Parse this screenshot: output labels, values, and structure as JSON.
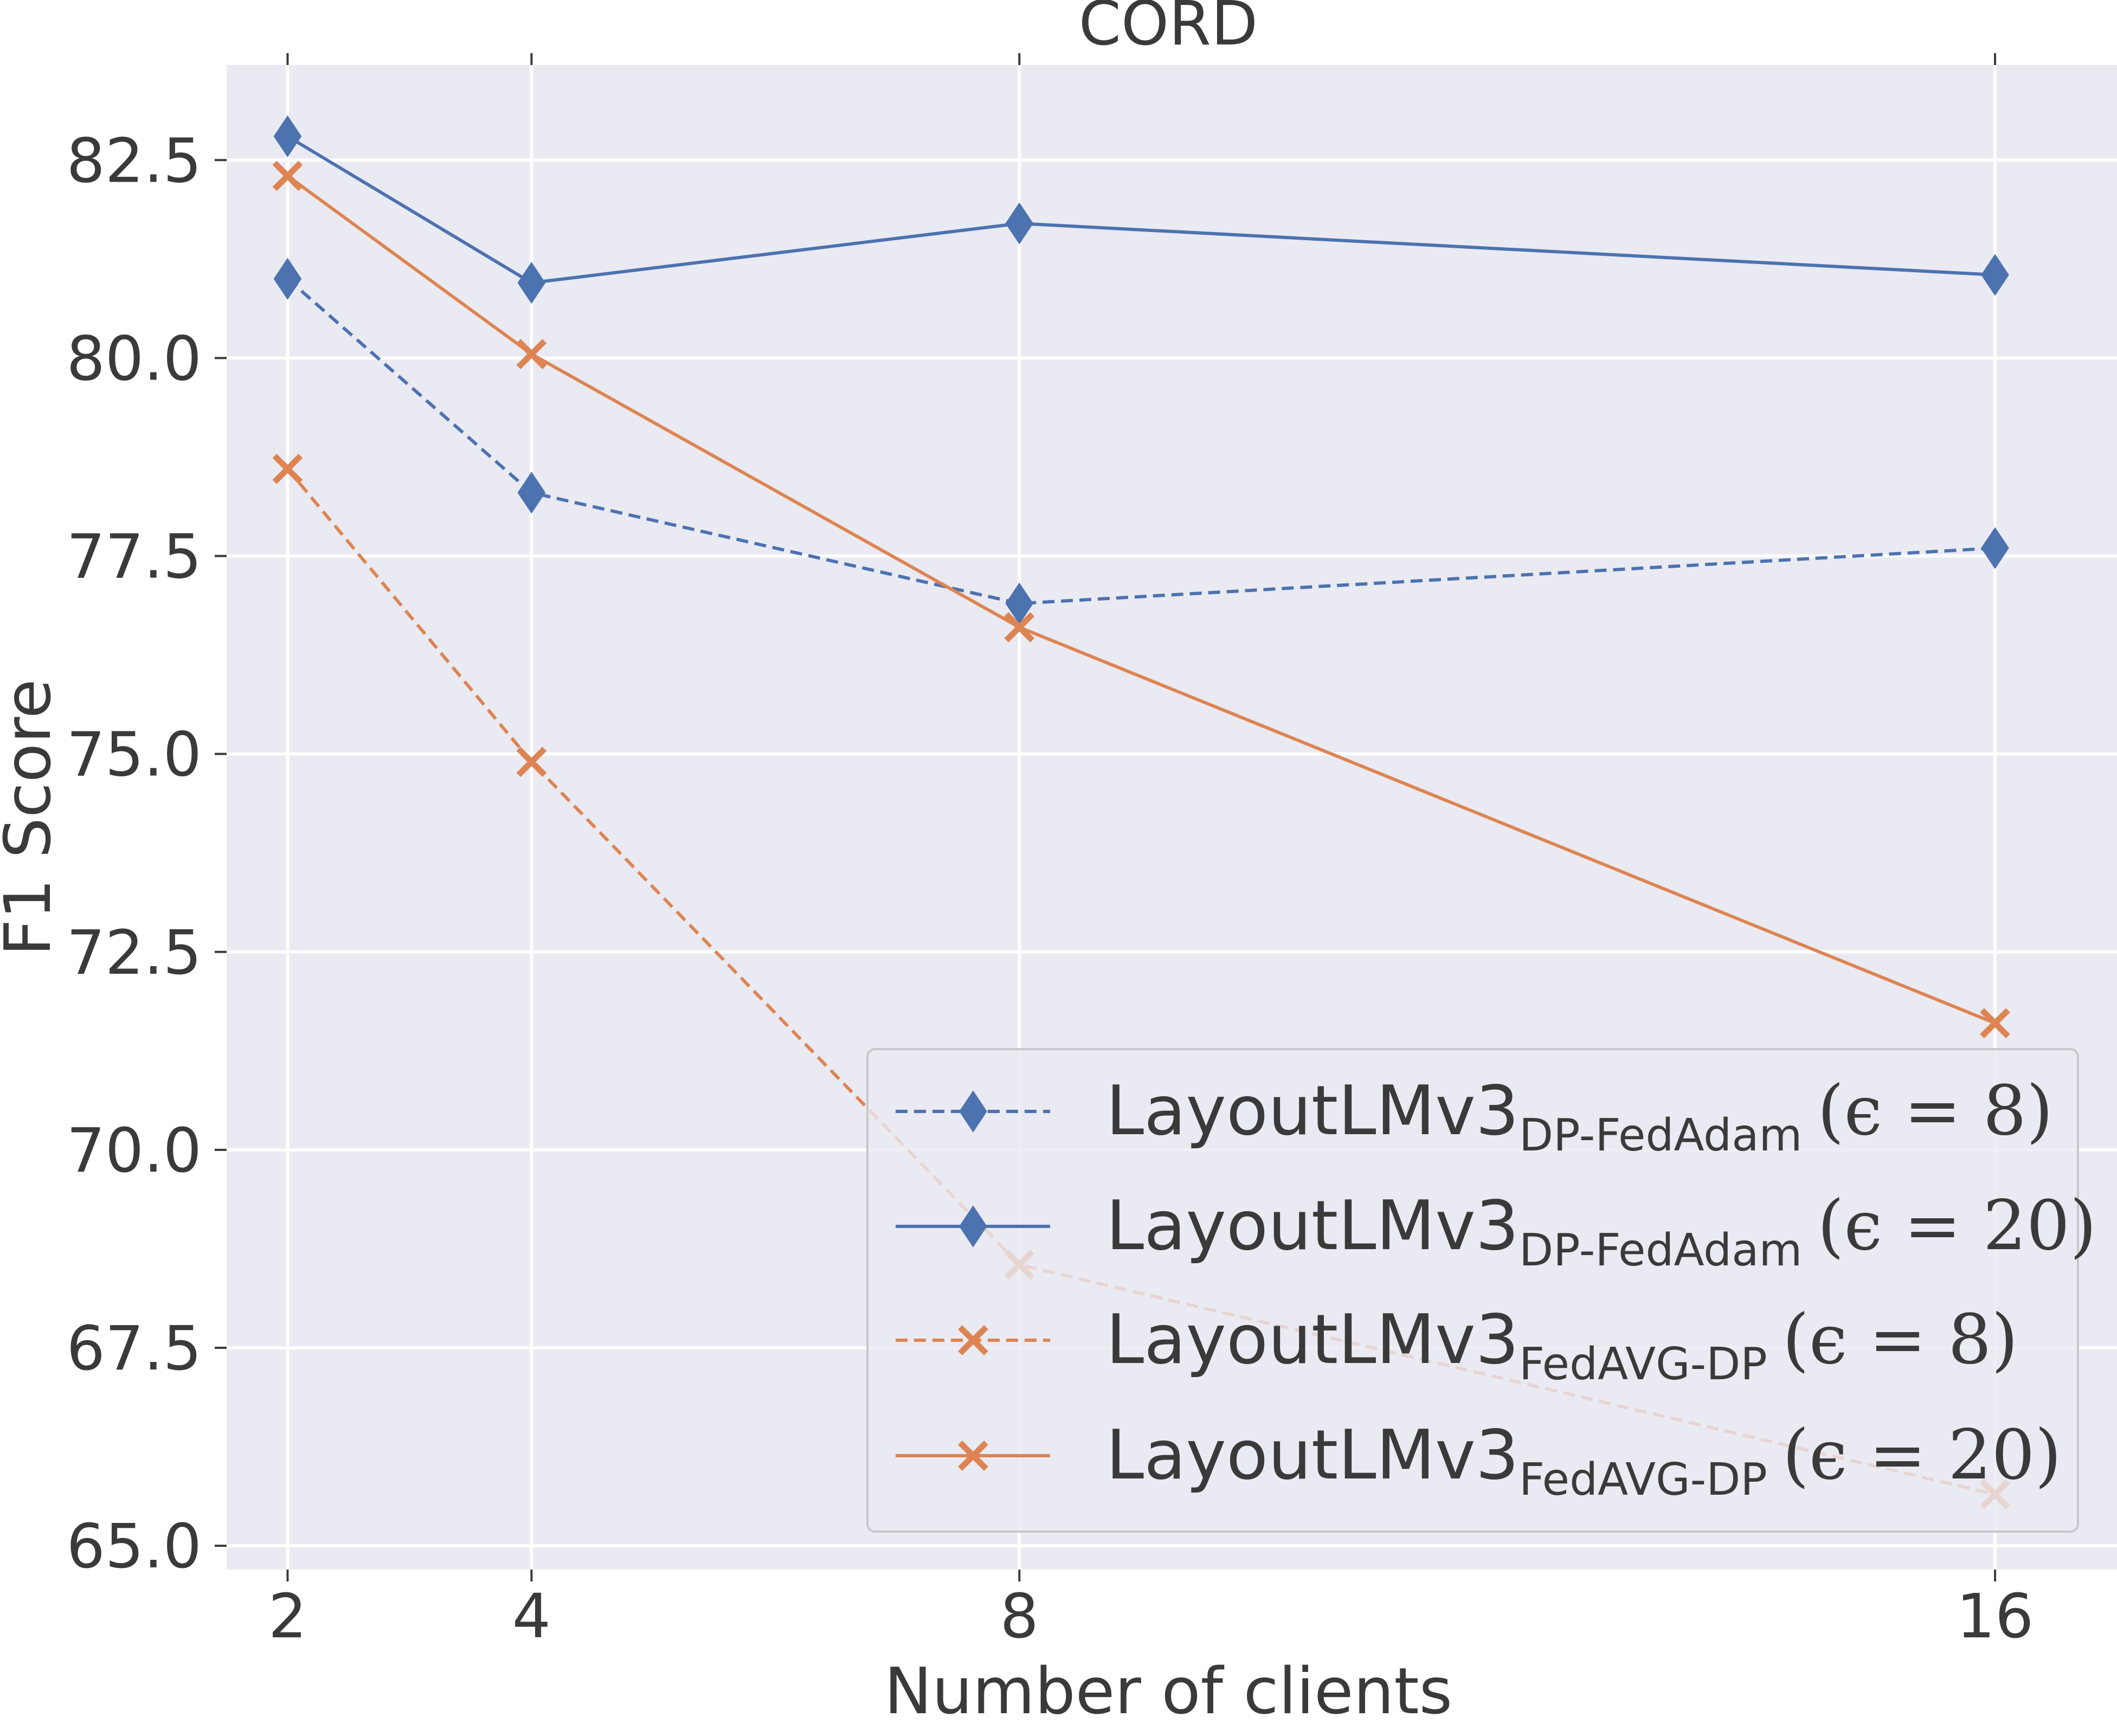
{
  "chart_data": {
    "type": "line",
    "title": "CORD",
    "xlabel": "Number of clients",
    "ylabel": "F1 Score",
    "x": [
      2,
      4,
      8,
      16
    ],
    "x_ticks": [
      "2",
      "4",
      "8",
      "16"
    ],
    "y_ticks": [
      "65.0",
      "67.5",
      "70.0",
      "72.5",
      "75.0",
      "77.5",
      "80.0",
      "82.5"
    ],
    "ylim": [
      64.7,
      83.7
    ],
    "grid": true,
    "legend_position": "bottom-right",
    "series": [
      {
        "name": "LayoutLMv3 DP-FedAdam (ε = 8)",
        "legend_main": "LayoutLMv3",
        "legend_sub": "DP-FedAdam",
        "legend_param": "(ϵ = 8)",
        "values": [
          81.0,
          78.3,
          76.9,
          77.6
        ],
        "color": "#4c72b0",
        "line_style": "dashed",
        "marker": "diamond"
      },
      {
        "name": "LayoutLMv3 DP-FedAdam (ε = 20)",
        "legend_main": "LayoutLMv3",
        "legend_sub": "DP-FedAdam",
        "legend_param": "(ϵ = 20)",
        "values": [
          82.8,
          80.95,
          81.7,
          81.05
        ],
        "color": "#4c72b0",
        "line_style": "solid",
        "marker": "diamond"
      },
      {
        "name": "LayoutLMv3 FedAVG-DP (ε = 8)",
        "legend_main": "LayoutLMv3",
        "legend_sub": "FedAVG-DP",
        "legend_param": "(ϵ = 8)",
        "values": [
          78.6,
          74.9,
          68.55,
          65.65
        ],
        "color": "#dd8452",
        "line_style": "dashed",
        "marker": "x"
      },
      {
        "name": "LayoutLMv3 FedAVG-DP (ε = 20)",
        "legend_main": "LayoutLMv3",
        "legend_sub": "FedAVG-DP",
        "legend_param": "(ϵ = 20)",
        "values": [
          82.3,
          80.05,
          76.6,
          71.6
        ],
        "color": "#dd8452",
        "line_style": "solid",
        "marker": "x"
      }
    ]
  }
}
